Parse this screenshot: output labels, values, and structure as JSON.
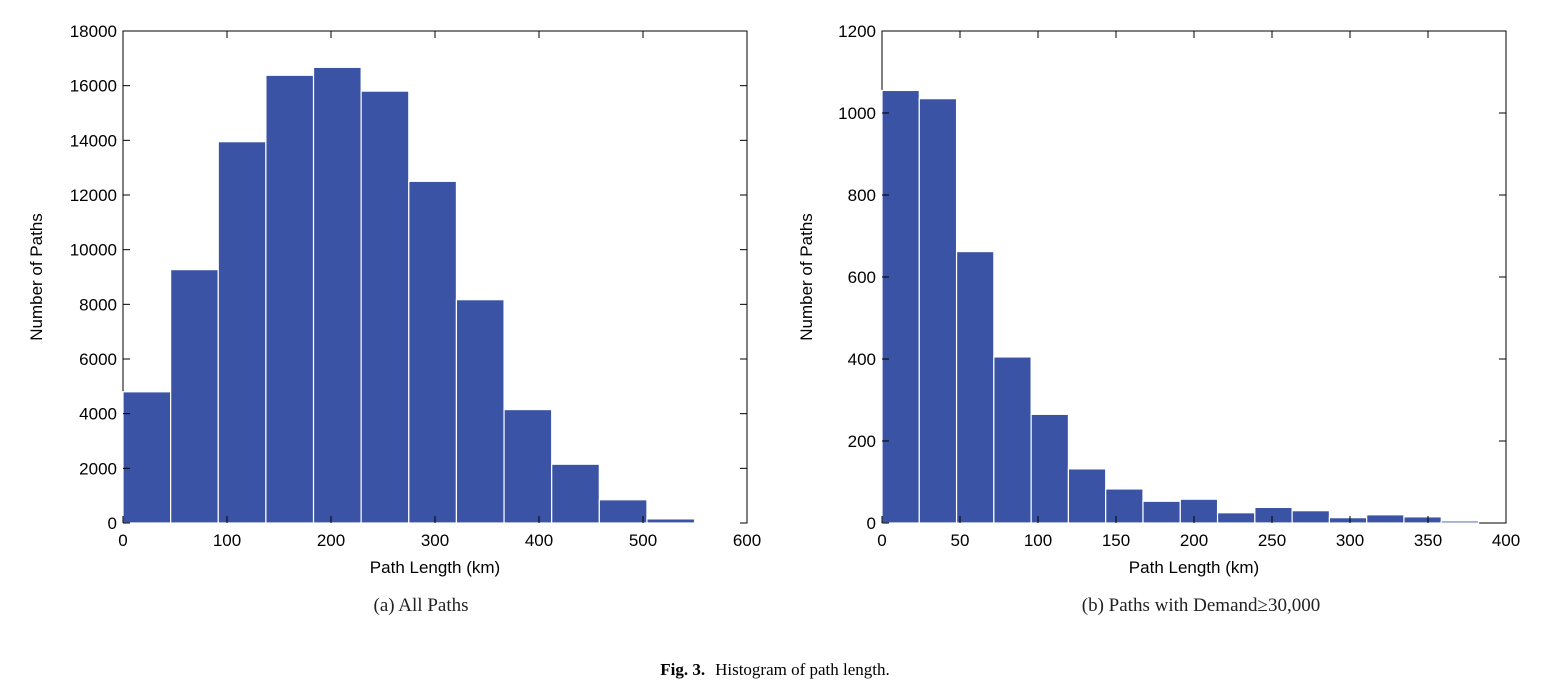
{
  "chart_data": [
    {
      "type": "bar",
      "title": "",
      "xlabel": "Path Length (km)",
      "ylabel": "Number of Paths",
      "caption": "(a) All Paths",
      "xlim": [
        0,
        600
      ],
      "ylim": [
        0,
        18000
      ],
      "x_ticks": [
        "0",
        "100",
        "200",
        "300",
        "400",
        "500",
        "600"
      ],
      "y_ticks": [
        "0",
        "2000",
        "4000",
        "6000",
        "8000",
        "10000",
        "12000",
        "14000",
        "16000",
        "18000"
      ],
      "bin_edges": [
        0,
        45.8,
        91.6,
        137.4,
        183.2,
        229,
        274.8,
        320.6,
        366.4,
        412.2,
        458,
        503.8,
        549.6,
        595.4
      ],
      "values": [
        4800,
        9270,
        13950,
        16380,
        16670,
        15800,
        12500,
        8170,
        4150,
        2150,
        850,
        150,
        30
      ],
      "bar_color": "#3a53a4",
      "grid": false
    },
    {
      "type": "bar",
      "title": "",
      "xlabel": "Path Length (km)",
      "ylabel": "Number of Paths",
      "caption_prefix": "(b) Paths with Demand",
      "caption_symbol": "≥",
      "caption_suffix": "30,000",
      "xlim": [
        0,
        400
      ],
      "ylim": [
        0,
        1200
      ],
      "x_ticks": [
        "0",
        "50",
        "100",
        "150",
        "200",
        "250",
        "300",
        "350",
        "400"
      ],
      "y_ticks": [
        "0",
        "200",
        "400",
        "600",
        "800",
        "1000",
        "1200"
      ],
      "bin_edges": [
        0,
        23.9,
        47.8,
        71.7,
        95.6,
        119.5,
        143.4,
        167.3,
        191.2,
        215.1,
        239,
        262.9,
        286.8,
        310.7,
        334.6,
        358.5,
        382.4
      ],
      "values": [
        1055,
        1035,
        662,
        405,
        265,
        132,
        83,
        53,
        58,
        25,
        38,
        30,
        13,
        20,
        15,
        5
      ],
      "bar_color": "#3a53a4",
      "grid": false
    }
  ],
  "figure_caption": {
    "label": "Fig. 3.",
    "text": "Histogram of path length."
  }
}
